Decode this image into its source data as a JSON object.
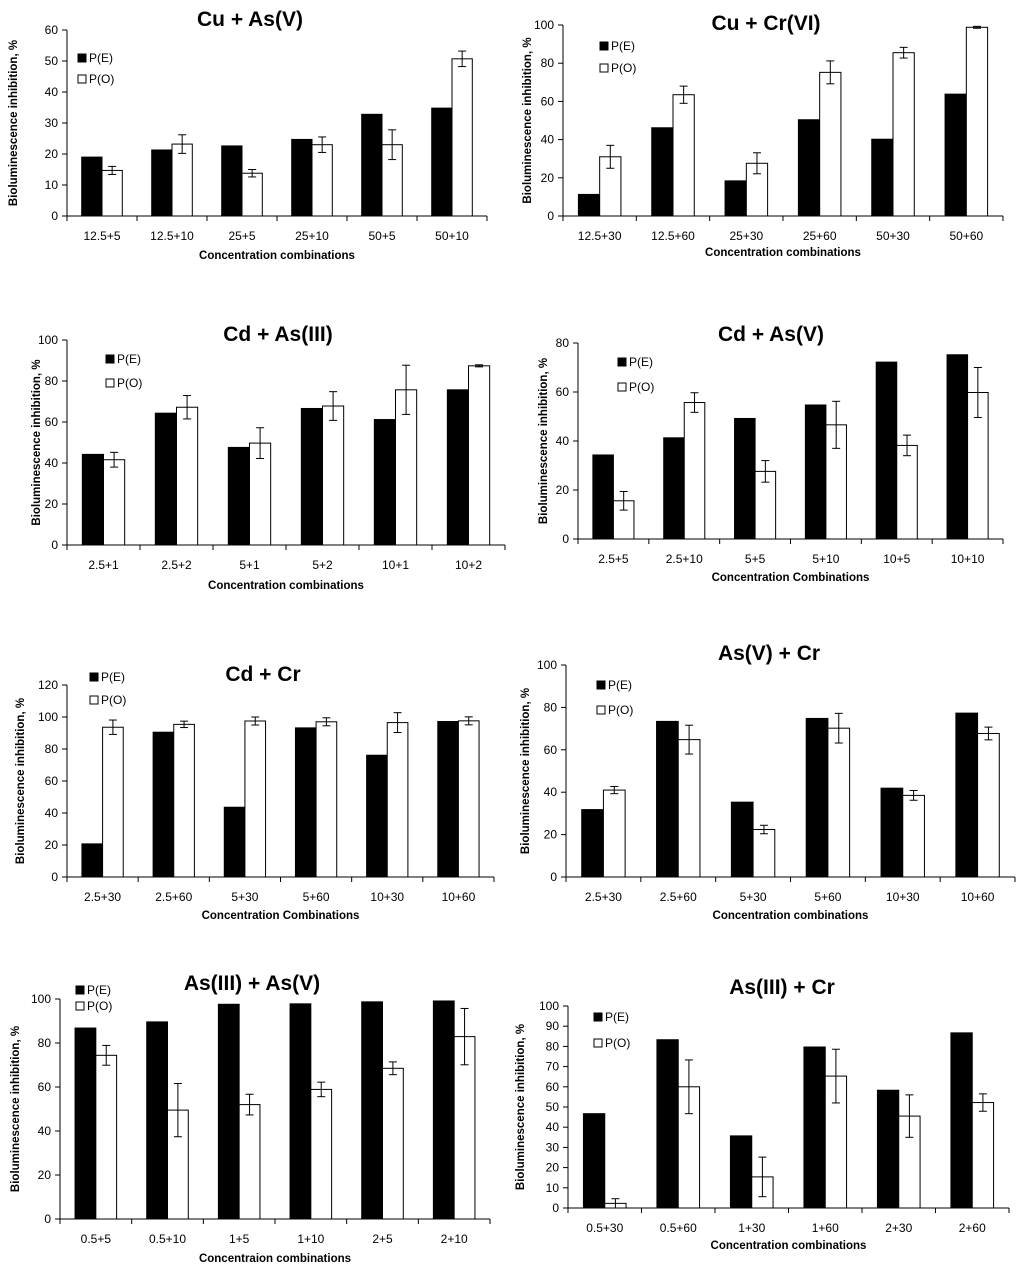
{
  "colors": {
    "pe": "#000000",
    "po": "#ffffff",
    "axis": "#000000"
  },
  "legend_labels": [
    "P(E)",
    "P(O)"
  ],
  "chart_data": [
    {
      "type": "bar",
      "title": "Cu + As(V)",
      "xlabel": "Concentration combinations",
      "ylabel": "Bioluminescence inhibition, %",
      "ylim": [
        0,
        60
      ],
      "yticks": [
        0,
        10,
        20,
        30,
        40,
        50,
        60
      ],
      "categories": [
        "12.5+5",
        "12.5+10",
        "25+5",
        "25+10",
        "50+5",
        "50+10"
      ],
      "legend": "top-left",
      "series": [
        {
          "name": "P(E)",
          "values": [
            19,
            21.3,
            22.6,
            24.7,
            32.8,
            34.8
          ]
        },
        {
          "name": "P(O)",
          "values": [
            14.7,
            23.2,
            13.8,
            23,
            23,
            50.7
          ],
          "errors": [
            1.3,
            3,
            1.2,
            2.5,
            4.8,
            2.5
          ]
        }
      ]
    },
    {
      "type": "bar",
      "title": "Cu + Cr(VI)",
      "xlabel": "Concentration combinations",
      "ylabel": "Bioluminescence inhibition, %",
      "ylim": [
        0,
        100
      ],
      "yticks": [
        0,
        20,
        40,
        60,
        80,
        100
      ],
      "categories": [
        "12.5+30",
        "12.5+60",
        "25+30",
        "25+60",
        "50+30",
        "50+60"
      ],
      "legend": "top-left",
      "series": [
        {
          "name": "P(E)",
          "values": [
            11.3,
            46.2,
            18.4,
            50.4,
            40.2,
            63.8
          ]
        },
        {
          "name": "P(O)",
          "values": [
            31,
            63.5,
            27.6,
            75.2,
            85.5,
            98.8
          ],
          "errors": [
            6,
            4.5,
            5.5,
            6,
            2.8,
            0.5
          ]
        }
      ]
    },
    {
      "type": "bar",
      "title": "Cd + As(III)",
      "xlabel": "Concentration combinations",
      "ylabel": "Bioluminescence inhibition, %",
      "ylim": [
        0,
        100
      ],
      "yticks": [
        0,
        20,
        40,
        60,
        80,
        100
      ],
      "categories": [
        "2.5+1",
        "2.5+2",
        "5+1",
        "5+2",
        "10+1",
        "10+2"
      ],
      "legend": "top-left",
      "series": [
        {
          "name": "P(E)",
          "values": [
            44.2,
            64.3,
            47.6,
            66.6,
            61.2,
            75.7
          ]
        },
        {
          "name": "P(O)",
          "values": [
            41.6,
            67.2,
            49.7,
            67.8,
            75.7,
            87.4
          ],
          "errors": [
            3.6,
            5.7,
            7.5,
            7,
            12,
            0.5
          ]
        }
      ]
    },
    {
      "type": "bar",
      "title": "Cd + As(V)",
      "xlabel": "Concentration Combinations",
      "ylabel": "Bioluminescence inhibition, %",
      "ylim": [
        0,
        80
      ],
      "yticks": [
        0,
        20,
        40,
        60,
        80
      ],
      "categories": [
        "2.5+5",
        "2.5+10",
        "5+5",
        "5+10",
        "10+5",
        "10+10"
      ],
      "legend": "top-left",
      "series": [
        {
          "name": "P(E)",
          "values": [
            34.3,
            41.3,
            49.2,
            54.7,
            72.2,
            75.2
          ]
        },
        {
          "name": "P(O)",
          "values": [
            15.6,
            55.7,
            27.6,
            46.6,
            38.2,
            59.8
          ],
          "errors": [
            3.8,
            4,
            4.4,
            9.6,
            4.2,
            10.2
          ]
        }
      ]
    },
    {
      "type": "bar",
      "title": "Cd + Cr",
      "xlabel": "Concentration Combinations",
      "ylabel": "Bioluminescence inhibition, %",
      "ylim": [
        0,
        120
      ],
      "yticks": [
        0,
        20,
        40,
        60,
        80,
        100,
        120
      ],
      "categories": [
        "2.5+30",
        "2.5+60",
        "5+30",
        "5+60",
        "10+30",
        "10+60"
      ],
      "legend": "top-left",
      "series": [
        {
          "name": "P(E)",
          "values": [
            20.7,
            90.5,
            43.6,
            93.2,
            76.1,
            97.2
          ]
        },
        {
          "name": "P(O)",
          "values": [
            93.6,
            95.4,
            97.5,
            97,
            96.5,
            97.6
          ],
          "errors": [
            4.5,
            2,
            2.5,
            2.5,
            6.2,
            2.5
          ]
        }
      ]
    },
    {
      "type": "bar",
      "title": "As(V) + Cr",
      "xlabel": "Concentration combinations",
      "ylabel": "Bioluminescence inhibition, %",
      "ylim": [
        0,
        100
      ],
      "yticks": [
        0,
        20,
        40,
        60,
        80,
        100
      ],
      "categories": [
        "2.5+30",
        "2.5+60",
        "5+30",
        "5+60",
        "10+30",
        "10+60"
      ],
      "legend": "top-left",
      "series": [
        {
          "name": "P(E)",
          "values": [
            31.8,
            73.4,
            35.3,
            74.8,
            41.9,
            77.3
          ]
        },
        {
          "name": "P(O)",
          "values": [
            41,
            64.8,
            22.4,
            70.2,
            38.5,
            67.7
          ],
          "errors": [
            1.7,
            6.8,
            2,
            7,
            2.3,
            3
          ]
        }
      ]
    },
    {
      "type": "bar",
      "title": "As(III) + As(V)",
      "xlabel": "Concentraion combinations",
      "ylabel": "Bioluminescence inhibition, %",
      "ylim": [
        0,
        100
      ],
      "yticks": [
        0,
        20,
        40,
        60,
        80,
        100
      ],
      "categories": [
        "0.5+5",
        "0.5+10",
        "1+5",
        "1+10",
        "2+5",
        "2+10"
      ],
      "legend": "top-left",
      "series": [
        {
          "name": "P(E)",
          "values": [
            86.8,
            89.6,
            97.6,
            97.8,
            98.7,
            99.1
          ]
        },
        {
          "name": "P(O)",
          "values": [
            74.4,
            49.5,
            52,
            58.9,
            68.5,
            82.9
          ],
          "errors": [
            4.5,
            12.1,
            4.7,
            3.3,
            2.9,
            12.8
          ]
        }
      ]
    },
    {
      "type": "bar",
      "title": "As(III) + Cr",
      "xlabel": "Concentration combinations",
      "ylabel": "Bioluminescence inhibition, %",
      "ylim": [
        0,
        100
      ],
      "yticks": [
        0,
        10,
        20,
        30,
        40,
        50,
        60,
        70,
        80,
        90,
        100
      ],
      "categories": [
        "0.5+30",
        "0.5+60",
        "1+30",
        "1+60",
        "2+30",
        "2+60"
      ],
      "legend": "top-left",
      "series": [
        {
          "name": "P(E)",
          "values": [
            46.7,
            83.3,
            35.7,
            79.7,
            58.3,
            86.7
          ]
        },
        {
          "name": "P(O)",
          "values": [
            2.3,
            60,
            15.4,
            65.3,
            45.5,
            52.2
          ],
          "errors": [
            2.3,
            13.3,
            9.8,
            13.3,
            10.5,
            4.3
          ]
        }
      ]
    }
  ]
}
